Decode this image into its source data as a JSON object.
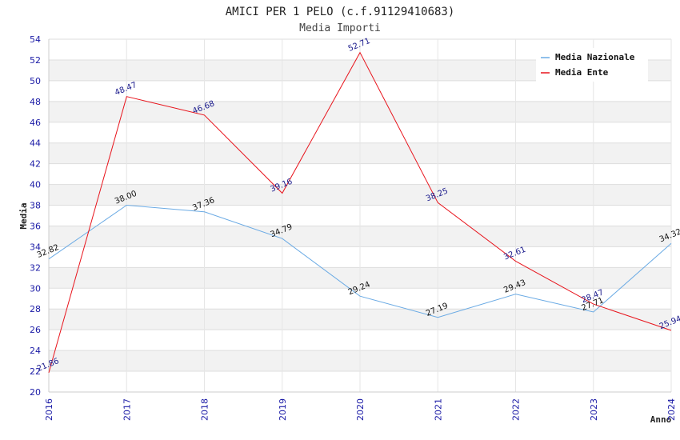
{
  "chart_data": {
    "type": "line",
    "title": "AMICI PER 1 PELO (c.f.91129410683)",
    "subtitle": "Media Importi",
    "xlabel": "Anno",
    "ylabel": "Media",
    "ylim": [
      20,
      54
    ],
    "ytick_step": 2,
    "yticks": [
      "20",
      "22",
      "24",
      "26",
      "28",
      "30",
      "32",
      "34",
      "36",
      "38",
      "40",
      "42",
      "44",
      "46",
      "48",
      "50",
      "52",
      "54"
    ],
    "categories": [
      "2016",
      "2017",
      "2018",
      "2019",
      "2020",
      "2021",
      "2022",
      "2023",
      "2024"
    ],
    "series": [
      {
        "name": "Media Nazionale",
        "color": "#6aaae4",
        "values": [
          32.82,
          38.0,
          37.36,
          34.79,
          29.24,
          27.19,
          29.43,
          27.71,
          34.32
        ],
        "labels": [
          "32.82",
          "38.00",
          "37.36",
          "34.79",
          "29.24",
          "27.19",
          "29.43",
          "27.71",
          "34.32"
        ]
      },
      {
        "name": "Media Ente",
        "color": "#e8141c",
        "values": [
          21.86,
          48.47,
          46.68,
          39.16,
          52.71,
          38.25,
          32.61,
          28.47,
          25.94
        ],
        "labels": [
          "21.86",
          "48.47",
          "46.68",
          "39.16",
          "52.71",
          "38.25",
          "32.61",
          "28.47",
          "25.94"
        ]
      }
    ],
    "legend": "top-right",
    "grid": true
  }
}
